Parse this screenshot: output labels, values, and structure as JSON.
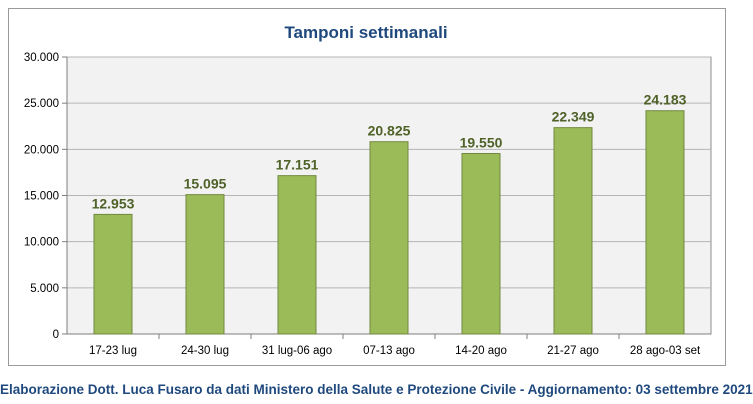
{
  "chart_data": {
    "type": "bar",
    "title": "Tamponi settimanali",
    "xlabel": "",
    "ylabel": "",
    "categories": [
      "17-23 lug",
      "24-30 lug",
      "31 lug-06 ago",
      "07-13 ago",
      "14-20 ago",
      "21-27 ago",
      "28 ago-03 set"
    ],
    "values": [
      12953,
      15095,
      17151,
      20825,
      19550,
      22349,
      24183
    ],
    "data_labels": [
      "12.953",
      "15.095",
      "17.151",
      "20.825",
      "19.550",
      "22.349",
      "24.183"
    ],
    "ylim": [
      0,
      30000
    ],
    "yticks": [
      0,
      5000,
      10000,
      15000,
      20000,
      25000,
      30000
    ],
    "ytick_labels": [
      "0",
      "5.000",
      "10.000",
      "15.000",
      "20.000",
      "25.000",
      "30.000"
    ],
    "grid": true,
    "legend": "none",
    "colors": {
      "bar": "#9bbb59",
      "bar_border": "#71893f",
      "data_label": "#4f6228",
      "title": "#1f497d",
      "plot_background": "#f2f2f2",
      "gridline": "#b5b5b5"
    }
  },
  "footer": {
    "text": "Elaborazione Dott. Luca Fusaro da dati Ministero della Salute e Protezione Civile - Aggiornamento: 03 settembre 2021"
  }
}
